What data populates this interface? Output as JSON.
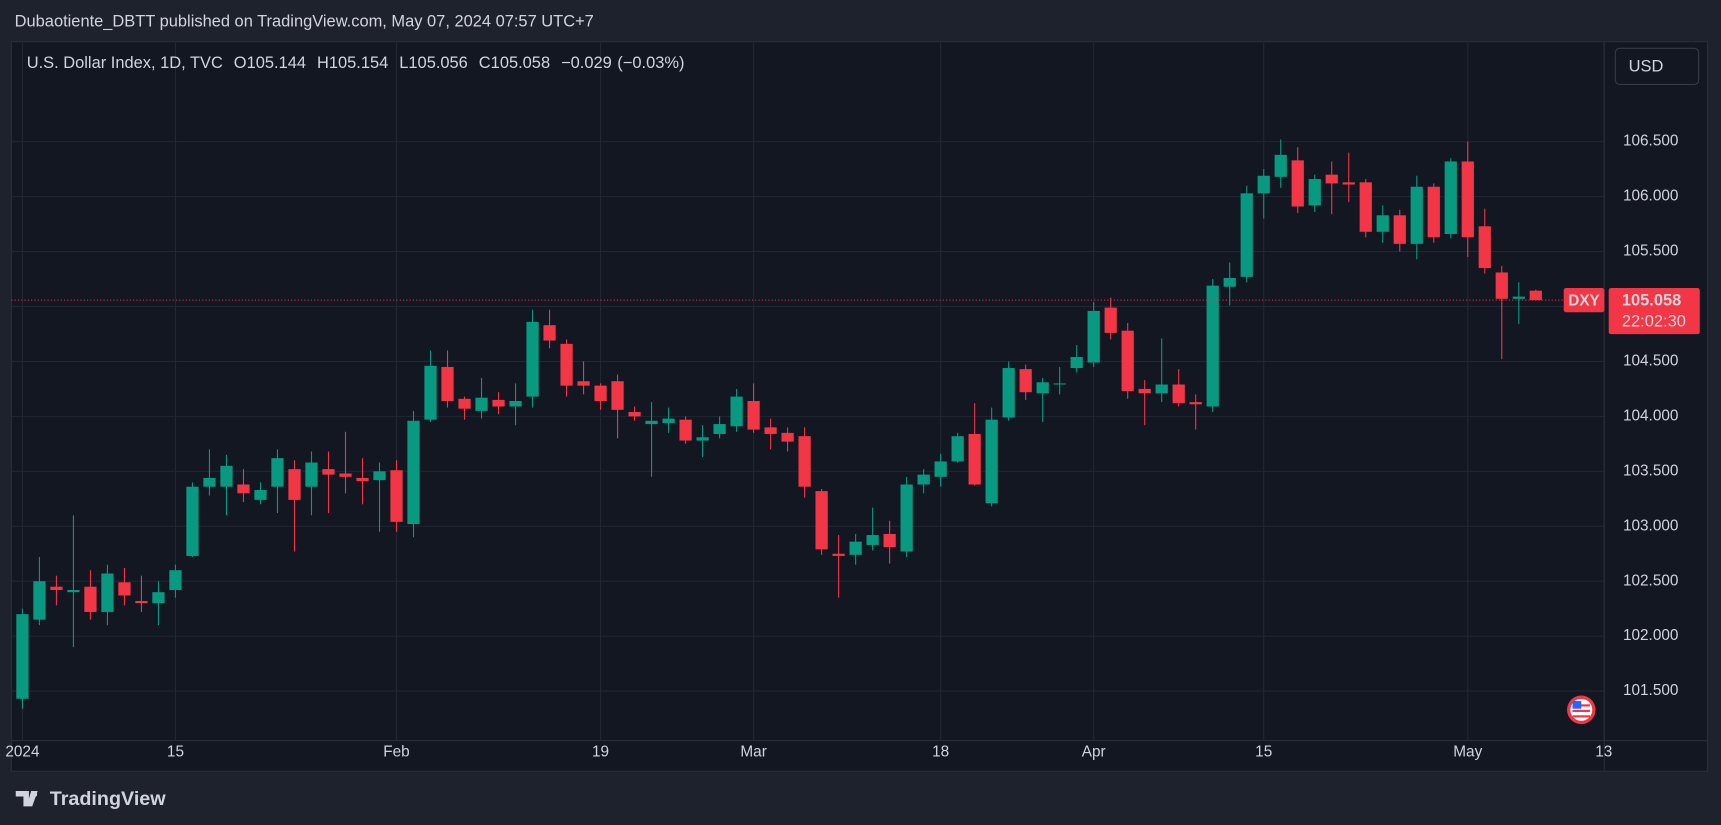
{
  "header": {
    "publisher": "Dubaotiente_DBTT published on TradingView.com, May 07, 2024 07:57 UTC+7"
  },
  "footer": {
    "brand": "TradingView"
  },
  "currency_button": "USD",
  "chart_data": {
    "type": "candlestick",
    "title": "U.S. Dollar Index, 1D, TVC",
    "ohlc_labels": [
      "O",
      "H",
      "L",
      "C"
    ],
    "change": {
      "value": -0.029,
      "label": "−0.029"
    },
    "change_percent": {
      "value": -0.03,
      "label": "(−0.03%)"
    },
    "symbol": "DXY",
    "countdown": "22:02:30",
    "up_color": "#089981",
    "down_color": "#f23645",
    "grid": true,
    "xlim": [
      -0.65,
      93.03
    ],
    "xticks": [
      {
        "value": 0,
        "label": "2024"
      },
      {
        "value": 9,
        "label": "15"
      },
      {
        "value": 22,
        "label": "Feb"
      },
      {
        "value": 34,
        "label": "19"
      },
      {
        "value": 43,
        "label": "Mar"
      },
      {
        "value": 54,
        "label": "18"
      },
      {
        "value": 63,
        "label": "Apr"
      },
      {
        "value": 73,
        "label": "15"
      },
      {
        "value": 85,
        "label": "May"
      },
      {
        "value": 93,
        "label": "13"
      }
    ],
    "ylim": [
      101.05,
      107.41
    ],
    "yticks": [
      {
        "value": 101.5,
        "label": "101.500"
      },
      {
        "value": 102,
        "label": "102.000"
      },
      {
        "value": 102.5,
        "label": "102.500"
      },
      {
        "value": 103,
        "label": "103.000"
      },
      {
        "value": 103.5,
        "label": "103.500"
      },
      {
        "value": 104,
        "label": "104.000"
      },
      {
        "value": 104.5,
        "label": "104.500"
      },
      {
        "value": 105,
        "label": "105.000"
      },
      {
        "value": 105.5,
        "label": "105.500"
      },
      {
        "value": 106,
        "label": "106.000"
      },
      {
        "value": 106.5,
        "label": "106.500"
      }
    ],
    "open": [
      101.43,
      102.15,
      102.45,
      102.4,
      102.45,
      102.22,
      102.49,
      102.32,
      102.3,
      102.42,
      102.73,
      103.36,
      103.36,
      103.38,
      103.24,
      103.36,
      103.52,
      103.36,
      103.52,
      103.48,
      103.44,
      103.42,
      103.51,
      103.02,
      103.97,
      104.45,
      104.16,
      104.05,
      104.15,
      104.09,
      104.18,
      104.83,
      104.66,
      104.32,
      104.28,
      104.32,
      104.04,
      103.93,
      103.94,
      103.97,
      103.78,
      103.84,
      103.91,
      104.14,
      103.9,
      103.85,
      103.82,
      103.32,
      102.75,
      102.74,
      102.83,
      102.93,
      102.77,
      103.38,
      103.45,
      103.59,
      103.84,
      103.21,
      103.99,
      104.43,
      104.21,
      104.29,
      104.44,
      104.49,
      104.99,
      104.78,
      104.25,
      104.21,
      104.29,
      104.13,
      104.09,
      105.18,
      105.27,
      106.03,
      106.18,
      106.33,
      105.92,
      106.2,
      106.13,
      106.13,
      105.68,
      105.83,
      105.57,
      106.09,
      105.66,
      106.32,
      105.73,
      105.31,
      105.07,
      105.144
    ],
    "high": [
      102.25,
      102.72,
      102.55,
      103.1,
      102.6,
      102.65,
      102.62,
      102.55,
      102.5,
      102.65,
      103.4,
      103.7,
      103.65,
      103.52,
      103.4,
      103.7,
      103.6,
      103.68,
      103.68,
      103.86,
      103.62,
      103.58,
      103.6,
      104.05,
      104.6,
      104.6,
      104.18,
      104.35,
      104.22,
      104.3,
      104.97,
      104.97,
      104.7,
      104.5,
      104.3,
      104.38,
      104.09,
      104.13,
      104.08,
      104.0,
      103.92,
      104.0,
      104.25,
      104.3,
      103.98,
      103.9,
      103.9,
      103.34,
      102.92,
      102.93,
      103.17,
      103.05,
      103.45,
      103.52,
      103.66,
      103.85,
      104.12,
      104.08,
      104.5,
      104.47,
      104.35,
      104.45,
      104.65,
      105.04,
      105.08,
      104.85,
      104.33,
      104.71,
      104.43,
      104.2,
      105.25,
      105.4,
      106.1,
      106.25,
      106.52,
      106.45,
      106.2,
      106.32,
      106.4,
      106.16,
      105.92,
      105.88,
      106.19,
      106.12,
      106.35,
      106.5,
      105.89,
      105.37,
      105.22,
      105.154
    ],
    "low": [
      101.34,
      102.1,
      102.28,
      101.9,
      102.15,
      102.1,
      102.28,
      102.22,
      102.1,
      102.35,
      102.72,
      103.28,
      103.1,
      103.22,
      103.2,
      103.12,
      102.77,
      103.1,
      103.12,
      103.3,
      103.2,
      102.95,
      102.95,
      102.9,
      103.95,
      104.08,
      103.97,
      103.98,
      104.02,
      103.92,
      104.08,
      104.62,
      104.18,
      104.2,
      104.06,
      103.8,
      103.96,
      103.45,
      103.85,
      103.75,
      103.63,
      103.8,
      103.86,
      103.85,
      103.7,
      103.68,
      103.26,
      102.74,
      102.35,
      102.65,
      102.78,
      102.66,
      102.72,
      103.3,
      103.36,
      103.58,
      103.37,
      103.18,
      103.96,
      104.15,
      103.95,
      104.2,
      104.4,
      104.45,
      104.7,
      104.16,
      103.92,
      104.13,
      104.09,
      103.88,
      104.04,
      105.01,
      105.22,
      105.8,
      106.08,
      105.85,
      105.86,
      105.84,
      105.95,
      105.63,
      105.58,
      105.5,
      105.43,
      105.58,
      105.62,
      105.45,
      105.3,
      104.52,
      104.84,
      105.056
    ],
    "close": [
      102.2,
      102.5,
      102.42,
      102.42,
      102.22,
      102.57,
      102.37,
      102.3,
      102.4,
      102.6,
      103.36,
      103.44,
      103.55,
      103.3,
      103.33,
      103.62,
      103.24,
      103.58,
      103.47,
      103.45,
      103.41,
      103.5,
      103.04,
      103.96,
      104.46,
      104.14,
      104.07,
      104.17,
      104.09,
      104.14,
      104.86,
      104.69,
      104.28,
      104.28,
      104.14,
      104.06,
      104.0,
      103.96,
      103.98,
      103.78,
      103.81,
      103.93,
      104.18,
      103.88,
      103.84,
      103.77,
      103.36,
      102.79,
      102.73,
      102.86,
      102.92,
      102.81,
      103.38,
      103.47,
      103.59,
      103.82,
      103.38,
      103.97,
      104.44,
      104.22,
      104.31,
      104.3,
      104.54,
      104.96,
      104.76,
      104.23,
      104.21,
      104.29,
      104.12,
      104.11,
      105.19,
      105.26,
      106.03,
      106.19,
      106.38,
      105.91,
      106.16,
      106.12,
      106.11,
      105.68,
      105.83,
      105.57,
      106.09,
      105.63,
      106.32,
      105.63,
      105.35,
      105.07,
      105.09,
      105.058
    ]
  }
}
